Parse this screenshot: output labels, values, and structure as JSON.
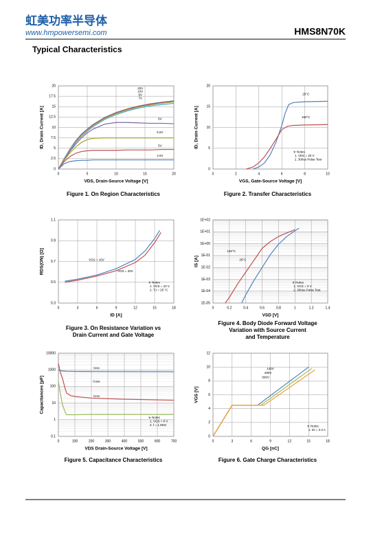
{
  "header": {
    "brand": "虹美功率半导体",
    "website": "www.hmpowersemi.com",
    "part_number": "HMS8N70K"
  },
  "section_title": "Typical Characteristics",
  "chart_data": [
    {
      "type": "line",
      "title": [
        "Figure 1. On Region Characteristics"
      ],
      "xlabel": "VDS, Drain-Source Voltage  [V]",
      "ylabel": "ID, Drain Current  [A]",
      "xlim": [
        0,
        20
      ],
      "xticks": [
        0,
        5,
        10,
        15,
        20
      ],
      "ylim": [
        0,
        20
      ],
      "yticks": [
        0,
        2.5,
        5,
        7.5,
        10,
        12.5,
        15,
        17.5,
        20
      ],
      "grid": true,
      "series": [
        {
          "name": "20V",
          "color": "#4f81bd",
          "x": [
            0,
            1,
            2,
            3,
            4,
            5,
            6,
            8,
            10,
            12,
            14,
            16,
            18,
            20
          ],
          "values": [
            0,
            2.5,
            4.8,
            6.8,
            8.4,
            9.6,
            10.7,
            12.4,
            13.6,
            14.5,
            15.2,
            15.7,
            16.1,
            16.4
          ]
        },
        {
          "name": "10V",
          "color": "#c0504d",
          "x": [
            0,
            1,
            2,
            3,
            4,
            5,
            6,
            8,
            10,
            12,
            14,
            16,
            18,
            20
          ],
          "values": [
            0,
            2.4,
            4.7,
            6.7,
            8.3,
            9.5,
            10.6,
            12.3,
            13.5,
            14.4,
            15.1,
            15.6,
            16,
            16.3
          ]
        },
        {
          "name": "8V",
          "color": "#9bbb59",
          "x": [
            0,
            1,
            2,
            3,
            4,
            5,
            6,
            8,
            10,
            12,
            14,
            16,
            18,
            20
          ],
          "values": [
            0,
            2.4,
            4.6,
            6.5,
            8.1,
            9.3,
            10.4,
            12.1,
            13.3,
            14.2,
            14.9,
            15.4,
            15.8,
            16.1
          ]
        },
        {
          "name": "7V",
          "color": "#4bacc6",
          "x": [
            0,
            1,
            2,
            3,
            4,
            5,
            6,
            8,
            10,
            12,
            14,
            16,
            18,
            20
          ],
          "values": [
            0,
            2.3,
            4.5,
            6.4,
            7.9,
            9.1,
            10.2,
            11.9,
            13.1,
            14,
            14.7,
            15.2,
            15.5,
            15.8
          ]
        },
        {
          "name": "6V",
          "color": "#8064a2",
          "x": [
            0,
            1,
            2,
            3,
            4,
            5,
            6,
            8,
            10,
            12,
            14,
            16,
            18,
            20
          ],
          "values": [
            0,
            2.3,
            4.3,
            6,
            7.5,
            8.7,
            9.6,
            10.8,
            11.2,
            11.2,
            11.1,
            11,
            11,
            10.9
          ]
        },
        {
          "name": "5.5V",
          "color": "#a5a52a",
          "x": [
            0,
            1,
            2,
            3,
            4,
            5,
            6,
            8,
            10,
            12,
            14,
            16,
            18,
            20
          ],
          "values": [
            0,
            2.1,
            3.9,
            5.3,
            6.4,
            7.1,
            7.4,
            7.5,
            7.5,
            7.5,
            7.5,
            7.5,
            7.5,
            7.5
          ]
        },
        {
          "name": "5V",
          "color": "#c0504d",
          "x": [
            0,
            1,
            2,
            3,
            4,
            5,
            6,
            8,
            10,
            12,
            14,
            16,
            18,
            20
          ],
          "values": [
            0,
            1.8,
            3,
            3.8,
            4.2,
            4.4,
            4.5,
            4.5,
            4.5,
            4.6,
            4.6,
            4.6,
            4.7,
            4.7
          ]
        },
        {
          "name": "4.5V",
          "color": "#4f81bd",
          "x": [
            0,
            1,
            2,
            3,
            4,
            5,
            6,
            8,
            10,
            12,
            14,
            16,
            18,
            20
          ],
          "values": [
            0,
            1.3,
            1.8,
            2,
            2.1,
            2.1,
            2.2,
            2.2,
            2.2,
            2.2,
            2.2,
            2.2,
            2.2,
            2.2
          ]
        }
      ]
    },
    {
      "type": "line",
      "title": [
        "Figure 2. Transfer Characteristics"
      ],
      "xlabel": "VGS, Gate-Source Voltage [V]",
      "ylabel": "ID, Drain Current [A]",
      "xlim": [
        0,
        10
      ],
      "xticks": [
        0,
        2,
        4,
        6,
        8,
        10
      ],
      "ylim": [
        0,
        20
      ],
      "yticks": [
        0,
        5,
        10,
        15,
        20
      ],
      "grid": true,
      "notes": [
        "※ Notes",
        "1. VDS = 20 V",
        "2. 300us Pulse Test"
      ],
      "series": [
        {
          "name": "25°C",
          "color": "#4f81bd",
          "x": [
            3.5,
            4,
            4.5,
            5,
            5.5,
            6,
            6.3,
            6.6,
            7,
            8,
            10
          ],
          "values": [
            0,
            0.5,
            1.5,
            3.5,
            6.5,
            10.5,
            13.5,
            15.5,
            16,
            16.2,
            16.3
          ]
        },
        {
          "name": "150°C",
          "color": "#c0504d",
          "x": [
            2.9,
            3.5,
            4,
            4.5,
            5,
            5.5,
            6,
            6.5,
            7,
            8,
            10
          ],
          "values": [
            0,
            0.5,
            1.5,
            3,
            5,
            7.2,
            9.5,
            10.3,
            10.5,
            10.6,
            10.7
          ]
        }
      ]
    },
    {
      "type": "line",
      "title": [
        "Figure 3. On Resistance Variation vs",
        "Drain Current and Gate Voltage"
      ],
      "xlabel": "ID  [A]",
      "ylabel": "RDS(ON) [Ω]",
      "xlim": [
        0,
        18
      ],
      "xticks": [
        0,
        3,
        6,
        9,
        12,
        15,
        18
      ],
      "ylim": [
        0.3,
        1.1
      ],
      "yticks": [
        0.3,
        0.5,
        0.7,
        0.9,
        1.1
      ],
      "grid": true,
      "notes": [
        "※ Notes",
        "1. VGS = 10 V",
        "2. TJ = 25 °C"
      ],
      "series": [
        {
          "name": "VGS = 10V",
          "color": "#4f81bd",
          "x": [
            1,
            3,
            6,
            9,
            12,
            13.5,
            15,
            15.8
          ],
          "values": [
            0.51,
            0.53,
            0.57,
            0.63,
            0.72,
            0.8,
            0.92,
            1.0
          ]
        },
        {
          "name": "VGS = 20V",
          "color": "#c0504d",
          "x": [
            1,
            3,
            6,
            9,
            12,
            13.5,
            15,
            16
          ],
          "values": [
            0.5,
            0.52,
            0.56,
            0.61,
            0.69,
            0.76,
            0.88,
            0.98
          ]
        }
      ]
    },
    {
      "type": "line",
      "title": [
        "Figure 4. Body Diode Forward Voltage",
        "Variation with Source Current",
        "and Temperature"
      ],
      "xlabel": "VSD [V]",
      "ylabel": "IS [A]",
      "log_y": true,
      "xlim": [
        0,
        1.4
      ],
      "xticks": [
        0,
        0.2,
        0.4,
        0.6,
        0.8,
        1,
        1.2,
        1.4
      ],
      "ylim": [
        1e-05,
        100
      ],
      "yticks": [
        {
          "value": 1e-05,
          "label": "1E-05"
        },
        {
          "value": 0.0001,
          "label": "1E-04"
        },
        {
          "value": 0.001,
          "label": "1E-03"
        },
        {
          "value": 0.01,
          "label": "1E-02"
        },
        {
          "value": 0.1,
          "label": "1E-01"
        },
        {
          "value": 1,
          "label": "1E+00"
        },
        {
          "value": 10,
          "label": "1E+01"
        },
        {
          "value": 100,
          "label": "1E+02"
        }
      ],
      "grid": true,
      "notes": [
        "※ Notes",
        "1. VGS = 0 V",
        "2. 300us Pulse Test"
      ],
      "series": [
        {
          "name": "150°C",
          "color": "#c0504d",
          "x": [
            0.15,
            0.2,
            0.3,
            0.4,
            0.5,
            0.6,
            0.7,
            0.8,
            0.9,
            1.0
          ],
          "values": [
            1e-05,
            3e-05,
            0.0004,
            0.004,
            0.04,
            0.4,
            1.5,
            4,
            8,
            15
          ]
        },
        {
          "name": "25°C",
          "color": "#4f81bd",
          "x": [
            0.35,
            0.4,
            0.5,
            0.6,
            0.7,
            0.8,
            0.9,
            1.0,
            1.05
          ],
          "values": [
            1e-05,
            5e-05,
            0.0008,
            0.01,
            0.12,
            0.9,
            4,
            12,
            20
          ]
        }
      ]
    },
    {
      "type": "line",
      "title": [
        "Figure 5. Capacitance Characteristics"
      ],
      "xlabel": "VDS Drain-Source Voltage [V]",
      "ylabel": "Capacitances [pF]",
      "log_y": true,
      "xlim": [
        0,
        700
      ],
      "xticks": [
        0,
        100,
        200,
        300,
        400,
        500,
        600,
        700
      ],
      "ylim": [
        0.1,
        10000
      ],
      "yticks": [
        0.1,
        1,
        10,
        100,
        1000,
        10000
      ],
      "grid": true,
      "notes": [
        "※ Notes",
        "1. VGS = 0 V",
        "2. f = 1 MHz"
      ],
      "series": [
        {
          "name": "Ciss",
          "color": "#4f81bd",
          "x": [
            0,
            10,
            25,
            50,
            100,
            200,
            400,
            700
          ],
          "values": [
            1000,
            900,
            850,
            820,
            800,
            790,
            780,
            770
          ]
        },
        {
          "name": "Coss",
          "color": "#c0504d",
          "x": [
            0,
            10,
            25,
            40,
            50,
            75,
            100,
            200,
            400,
            700
          ],
          "values": [
            2500,
            800,
            300,
            80,
            40,
            28,
            25,
            20,
            17,
            15
          ]
        },
        {
          "name": "Crss",
          "color": "#9bbb59",
          "x": [
            0,
            10,
            25,
            40,
            50,
            75,
            100,
            200,
            400,
            700
          ],
          "values": [
            200,
            50,
            8,
            3,
            2,
            2,
            2,
            2.1,
            2.1,
            2.1
          ]
        }
      ]
    },
    {
      "type": "line",
      "title": [
        "Figure 6. Gate Charge Characteristics"
      ],
      "xlabel": "QG [nC]",
      "ylabel": "VGS [V]",
      "xlim": [
        0,
        18
      ],
      "xticks": [
        0,
        3,
        6,
        9,
        12,
        15,
        18
      ],
      "ylim": [
        0,
        12
      ],
      "yticks": [
        0,
        2,
        4,
        6,
        8,
        10,
        12
      ],
      "grid": true,
      "notes": [
        "※ Notes",
        "1. ID = 3.3 A"
      ],
      "series": [
        {
          "name": "140V",
          "color": "#4f81bd",
          "x": [
            0,
            3,
            7,
            15
          ],
          "values": [
            0,
            4.5,
            4.5,
            10
          ]
        },
        {
          "name": "280V",
          "color": "#9bbb59",
          "x": [
            0,
            3,
            7.5,
            15.5
          ],
          "values": [
            0,
            4.5,
            4.5,
            9.8
          ]
        },
        {
          "name": "560V",
          "color": "#f0a030",
          "x": [
            0,
            3,
            8,
            16
          ],
          "values": [
            0,
            4.5,
            4.5,
            9.6
          ]
        }
      ]
    }
  ]
}
